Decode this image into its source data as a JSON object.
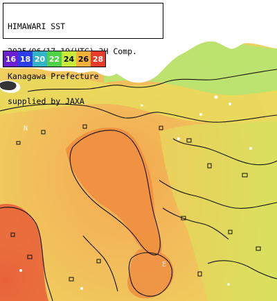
{
  "caption": {
    "line1": "HIMAWARI SST",
    "line2": "2025/06/17 19(UTC) 3H Comp.",
    "line3": "Kanagawa Prefecture",
    "line4": "supplied by JAXA"
  },
  "legend": {
    "items": [
      {
        "label": "16",
        "bg": "#6a1fd0",
        "fg": "#ffffff"
      },
      {
        "label": "18",
        "bg": "#2b3ee8",
        "fg": "#ffffff"
      },
      {
        "label": "20",
        "bg": "#33b3c8",
        "fg": "#ffffff"
      },
      {
        "label": "22",
        "bg": "#4fd24a",
        "fg": "#ffffff"
      },
      {
        "label": "24",
        "bg": "#c9ec3a",
        "fg": "#000000"
      },
      {
        "label": "26",
        "bg": "#f3b03a",
        "fg": "#000000"
      },
      {
        "label": "28",
        "bg": "#e83c2a",
        "fg": "#ffffff"
      }
    ]
  },
  "grid": {
    "lat_label": "N",
    "lon_label": "E"
  },
  "colors": {
    "land": "#ffffff",
    "sea_warm": "#f4a64a",
    "sea_mid": "#f1cf5a",
    "sea_cool": "#d8e860",
    "sea_cooler": "#b6e46a",
    "sea_hot": "#ee6a36",
    "contour": "#111111"
  }
}
